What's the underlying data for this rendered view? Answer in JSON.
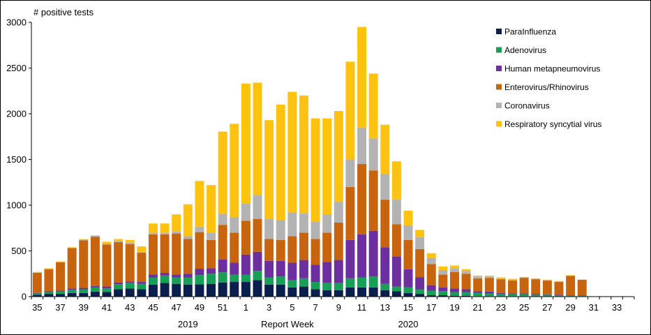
{
  "chart_data": {
    "type": "bar",
    "stacked": true,
    "ylabel": "# positive tests",
    "xlabel": "Report Week",
    "ylim": [
      0,
      3000
    ],
    "yticks": [
      0,
      500,
      1000,
      1500,
      2000,
      2500,
      3000
    ],
    "grid": false,
    "legend_position": "top-right",
    "year_labels": [
      {
        "label": "2019",
        "at_category": "48"
      },
      {
        "label": "2020",
        "at_category": "15"
      }
    ],
    "categories": [
      "35",
      "36",
      "37",
      "38",
      "39",
      "40",
      "41",
      "42",
      "43",
      "44",
      "45",
      "46",
      "47",
      "48",
      "49",
      "50",
      "51",
      "52",
      "1",
      "2",
      "3",
      "4",
      "5",
      "6",
      "7",
      "8",
      "9",
      "10",
      "11",
      "12",
      "13",
      "14",
      "15",
      "16",
      "17",
      "18",
      "19",
      "20",
      "21",
      "22",
      "23",
      "24",
      "25",
      "26",
      "27",
      "28",
      "29",
      "30",
      "31",
      "32",
      "33",
      "34"
    ],
    "tick_labels": [
      "35",
      "37",
      "39",
      "41",
      "43",
      "45",
      "47",
      "49",
      "51",
      "1",
      "3",
      "5",
      "7",
      "9",
      "11",
      "13",
      "15",
      "17",
      "19",
      "21",
      "23",
      "25",
      "27",
      "29",
      "31",
      "33"
    ],
    "series": [
      {
        "name": "ParaInfluenza",
        "color": "#0b1f4f",
        "values": [
          20,
          30,
          30,
          40,
          40,
          55,
          50,
          80,
          90,
          80,
          130,
          150,
          140,
          130,
          135,
          140,
          155,
          160,
          160,
          180,
          130,
          130,
          100,
          110,
          80,
          70,
          70,
          100,
          100,
          100,
          70,
          60,
          40,
          30,
          15,
          15,
          10,
          10,
          5,
          5,
          5,
          5,
          5,
          5,
          5,
          5,
          5,
          5,
          0,
          0,
          0,
          0
        ]
      },
      {
        "name": "Adenovirus",
        "color": "#17a055",
        "values": [
          15,
          20,
          25,
          35,
          40,
          45,
          40,
          55,
          60,
          60,
          80,
          80,
          70,
          80,
          100,
          110,
          110,
          80,
          80,
          100,
          80,
          90,
          80,
          90,
          80,
          80,
          80,
          100,
          110,
          120,
          70,
          50,
          60,
          50,
          50,
          45,
          40,
          40,
          35,
          30,
          25,
          20,
          20,
          15,
          15,
          10,
          5,
          5,
          0,
          0,
          0,
          0
        ]
      },
      {
        "name": "Human metapneumovirus",
        "color": "#6d2ea0",
        "values": [
          5,
          10,
          10,
          15,
          15,
          15,
          20,
          20,
          15,
          20,
          30,
          30,
          30,
          40,
          70,
          60,
          140,
          130,
          220,
          210,
          180,
          170,
          190,
          200,
          190,
          230,
          250,
          420,
          470,
          500,
          400,
          330,
          200,
          130,
          60,
          40,
          40,
          30,
          20,
          20,
          10,
          10,
          10,
          10,
          5,
          5,
          5,
          5,
          0,
          0,
          0,
          0
        ]
      },
      {
        "name": "Enterovirus/Rhinovirus",
        "color": "#c8630e",
        "values": [
          220,
          240,
          310,
          440,
          520,
          540,
          460,
          440,
          410,
          320,
          440,
          420,
          450,
          380,
          400,
          310,
          380,
          330,
          370,
          360,
          240,
          230,
          290,
          300,
          280,
          320,
          410,
          580,
          770,
          660,
          520,
          350,
          320,
          310,
          230,
          140,
          180,
          170,
          140,
          150,
          150,
          140,
          170,
          160,
          150,
          140,
          210,
          170,
          0,
          0,
          0,
          0
        ]
      },
      {
        "name": "Coronavirus",
        "color": "#b3b3b3",
        "values": [
          5,
          5,
          5,
          5,
          10,
          10,
          10,
          15,
          15,
          10,
          20,
          20,
          20,
          30,
          60,
          80,
          120,
          170,
          190,
          260,
          220,
          220,
          260,
          210,
          190,
          200,
          230,
          300,
          400,
          350,
          280,
          270,
          160,
          130,
          70,
          50,
          40,
          30,
          20,
          15,
          10,
          10,
          5,
          5,
          5,
          5,
          5,
          0,
          0,
          0,
          0,
          0
        ]
      },
      {
        "name": "Respiratory syncytial virus",
        "color": "#ffc20e",
        "values": [
          5,
          5,
          5,
          5,
          5,
          5,
          20,
          20,
          30,
          60,
          100,
          100,
          190,
          350,
          500,
          520,
          900,
          1020,
          1310,
          1230,
          1080,
          1260,
          1320,
          1290,
          1130,
          1050,
          990,
          1070,
          1100,
          710,
          540,
          420,
          160,
          80,
          50,
          40,
          30,
          20,
          10,
          10,
          10,
          10,
          5,
          5,
          5,
          5,
          5,
          0,
          0,
          0,
          0,
          0
        ]
      }
    ]
  }
}
